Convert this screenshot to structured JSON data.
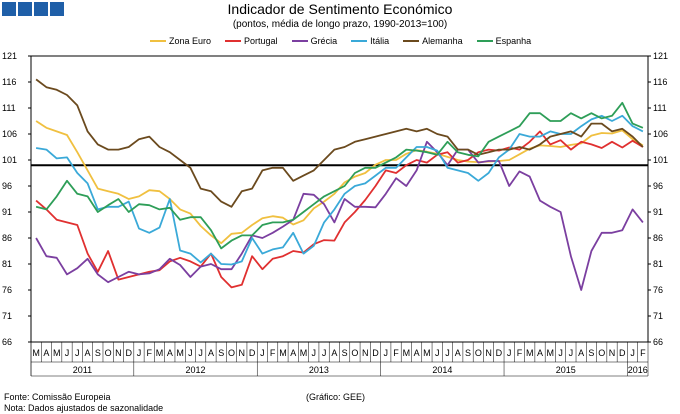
{
  "header": {
    "title": "Indicador de Sentimento Económico",
    "subtitle": "(pontos, média de longo prazo, 1990-2013=100)"
  },
  "brand": {
    "color": "#1f5fa8"
  },
  "footer": {
    "source": "Fonte: Comissão Europeia",
    "note": "Nota: Dados ajustados de sazonalidade",
    "credit": "(Gráfico: GEE)"
  },
  "chart_data": {
    "type": "line",
    "title": "",
    "xlabel": "",
    "ylabel": "",
    "ylim": [
      66,
      121
    ],
    "y_ticks": [
      66,
      71,
      76,
      81,
      86,
      91,
      96,
      101,
      106,
      111,
      116,
      121
    ],
    "reference_line": 100,
    "grid": false,
    "legend_position": "top",
    "month_labels": [
      "M",
      "A",
      "M",
      "J",
      "J",
      "A",
      "S",
      "O",
      "N",
      "D",
      "J",
      "F",
      "M",
      "A",
      "M",
      "J",
      "J",
      "A",
      "S",
      "O",
      "N",
      "D",
      "J",
      "F",
      "M",
      "A",
      "M",
      "J",
      "J",
      "A",
      "S",
      "O",
      "N",
      "D",
      "J",
      "F",
      "M",
      "A",
      "M",
      "J",
      "J",
      "A",
      "S",
      "O",
      "N",
      "D",
      "J",
      "F",
      "M",
      "A",
      "M",
      "J",
      "J",
      "A",
      "S",
      "O",
      "N",
      "D",
      "J",
      "F"
    ],
    "year_labels": [
      {
        "label": "2011",
        "start": 0,
        "end": 10
      },
      {
        "label": "2012",
        "start": 10,
        "end": 22
      },
      {
        "label": "2013",
        "start": 22,
        "end": 34
      },
      {
        "label": "2014",
        "start": 34,
        "end": 46
      },
      {
        "label": "2015",
        "start": 46,
        "end": 58
      },
      {
        "label": "2016",
        "start": 58,
        "end": 60
      }
    ],
    "series": [
      {
        "name": "Zona Euro",
        "color": "#f0c040",
        "values": [
          108.5,
          107.2,
          106.5,
          105.8,
          102.5,
          99.0,
          95.5,
          95.0,
          94.5,
          93.5,
          94.0,
          95.2,
          95.0,
          93.5,
          91.5,
          90.7,
          88.3,
          86.5,
          85.0,
          86.8,
          87.0,
          88.5,
          89.8,
          90.2,
          89.9,
          88.6,
          89.4,
          91.7,
          93.0,
          94.5,
          96.7,
          97.8,
          98.5,
          100.1,
          101.0,
          101.0,
          102.2,
          102.9,
          102.6,
          102.2,
          101.6,
          101.0,
          100.7,
          100.6,
          100.7,
          100.8,
          101.0,
          102.1,
          103.2,
          103.8,
          103.7,
          103.5,
          103.9,
          104.2,
          105.7,
          106.2,
          106.1,
          106.7,
          105.0,
          103.8
        ]
      },
      {
        "name": "Portugal",
        "color": "#e03030",
        "values": [
          93.2,
          91.5,
          89.5,
          89.0,
          88.5,
          83.0,
          79.5,
          83.5,
          78.0,
          78.5,
          79.0,
          79.5,
          79.8,
          81.5,
          82.2,
          81.5,
          80.5,
          83.0,
          78.5,
          76.5,
          77.0,
          82.5,
          80.0,
          82.0,
          82.5,
          83.5,
          83.2,
          84.8,
          85.6,
          85.5,
          89.0,
          91.0,
          93.3,
          96.0,
          99.0,
          98.5,
          100.0,
          101.0,
          100.5,
          102.0,
          102.5,
          100.5,
          101.0,
          102.5,
          103.0,
          102.8,
          103.4,
          103.0,
          104.5,
          106.5,
          104.0,
          104.8,
          103.0,
          104.5,
          104.0,
          103.3,
          104.5,
          103.4,
          104.7,
          103.5
        ]
      },
      {
        "name": "Grécia",
        "color": "#7b3fa0",
        "values": [
          86.0,
          82.5,
          82.2,
          79.0,
          80.2,
          82.0,
          79.0,
          77.5,
          78.5,
          79.5,
          79.0,
          79.2,
          80.0,
          82.0,
          80.8,
          78.5,
          80.5,
          81.0,
          80.0,
          80.0,
          83.0,
          86.5,
          86.0,
          87.0,
          88.2,
          89.5,
          94.5,
          94.3,
          92.5,
          89.0,
          93.5,
          92.0,
          92.0,
          91.9,
          94.5,
          97.5,
          96.0,
          99.0,
          104.5,
          102.5,
          100.0,
          103.0,
          103.0,
          100.5,
          100.8,
          100.8,
          96.0,
          98.8,
          97.8,
          93.2,
          92.0,
          91.0,
          82.5,
          76.0,
          83.5,
          87.0,
          87.0,
          87.5,
          91.5,
          89.0
        ]
      },
      {
        "name": "Itália",
        "color": "#3aa9d8",
        "values": [
          103.3,
          103.0,
          101.3,
          101.5,
          98.5,
          96.5,
          91.5,
          92.0,
          92.0,
          93.0,
          87.8,
          87.0,
          88.0,
          93.5,
          83.6,
          83.0,
          81.3,
          83.0,
          81.0,
          80.9,
          81.5,
          86.0,
          83.0,
          83.8,
          84.2,
          87.0,
          83.0,
          84.5,
          89.0,
          91.5,
          94.5,
          96.0,
          96.5,
          98.0,
          99.5,
          99.5,
          101.5,
          103.5,
          103.5,
          102.8,
          99.5,
          99.0,
          98.5,
          97.0,
          98.5,
          101.5,
          103.0,
          106.0,
          105.5,
          105.5,
          106.5,
          106.0,
          106.0,
          107.5,
          108.8,
          109.5,
          108.5,
          109.5,
          107.5,
          106.5
        ]
      },
      {
        "name": "Alemanha",
        "color": "#6b4a1e",
        "values": [
          116.5,
          115.0,
          114.5,
          113.5,
          111.5,
          106.5,
          104.0,
          103.0,
          103.0,
          103.5,
          105.0,
          105.5,
          103.5,
          102.5,
          101.0,
          99.5,
          95.5,
          95.0,
          93.0,
          92.0,
          95.0,
          95.5,
          99.0,
          99.5,
          99.5,
          97.0,
          98.0,
          99.0,
          101.0,
          103.0,
          103.5,
          104.5,
          105.0,
          105.5,
          106.0,
          106.5,
          107.0,
          106.5,
          107.0,
          106.0,
          105.5,
          103.0,
          103.0,
          102.0,
          102.5,
          103.0,
          103.0,
          103.5,
          103.0,
          104.0,
          105.5,
          106.0,
          106.5,
          105.5,
          108.0,
          108.0,
          106.5,
          107.0,
          105.5,
          103.5
        ]
      },
      {
        "name": "Espanha",
        "color": "#2e9e58",
        "values": [
          92.0,
          91.5,
          94.0,
          97.0,
          94.5,
          94.0,
          91.0,
          92.3,
          93.5,
          91.0,
          92.5,
          92.3,
          91.5,
          91.8,
          89.5,
          90.0,
          90.0,
          87.5,
          84.0,
          85.5,
          86.5,
          86.5,
          88.5,
          89.0,
          89.0,
          89.5,
          91.0,
          92.5,
          94.0,
          95.0,
          96.0,
          98.5,
          99.5,
          99.5,
          100.5,
          101.5,
          103.0,
          102.8,
          102.5,
          102.0,
          104.5,
          102.5,
          102.0,
          101.7,
          104.5,
          105.5,
          106.5,
          107.5,
          110.0,
          110.0,
          108.5,
          108.5,
          110.0,
          109.0,
          110.0,
          109.0,
          109.5,
          112.0,
          108.0,
          107.2
        ]
      }
    ]
  }
}
